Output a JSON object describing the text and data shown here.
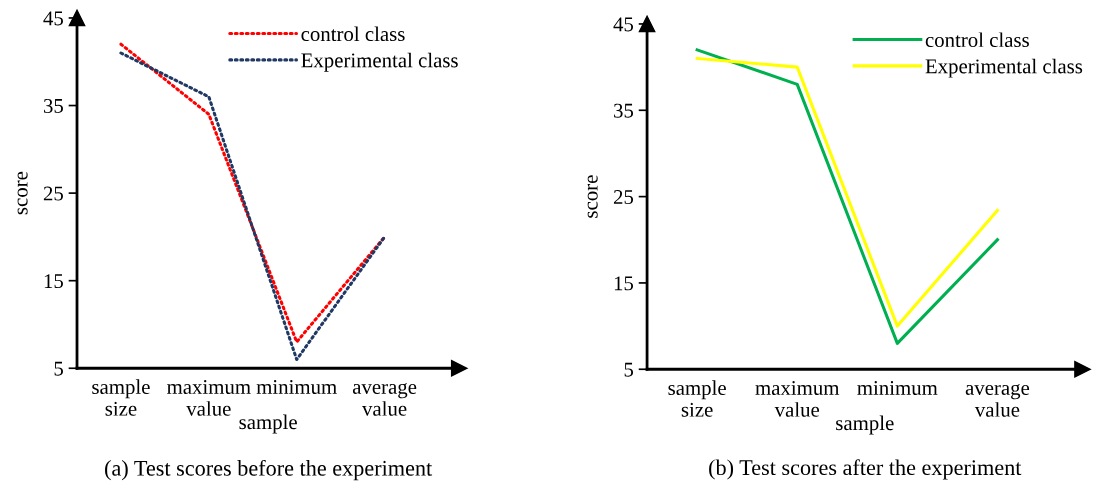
{
  "chart_data": [
    {
      "type": "line",
      "title": "(a) Test scores before the experiment",
      "xlabel": "sample",
      "ylabel": "score",
      "categories": [
        "sample\nsize",
        "maximum\nvalue",
        "minimum",
        "average\nvalue"
      ],
      "series": [
        {
          "name": "control class",
          "color": "#ff0000",
          "line_style": "dotted",
          "values": [
            42,
            34,
            8,
            20
          ]
        },
        {
          "name": "Experimental class",
          "color": "#203864",
          "line_style": "dotted",
          "values": [
            41,
            36,
            6,
            20
          ]
        }
      ],
      "ylim": [
        5,
        45
      ],
      "yticks": [
        5,
        15,
        25,
        35,
        45
      ],
      "grid": false,
      "legend": "top right"
    },
    {
      "type": "line",
      "title": "(b) Test scores after the experiment",
      "xlabel": "sample",
      "ylabel": "score",
      "categories": [
        "sample\nsize",
        "maximum\nvalue",
        "minimum",
        "average\nvalue"
      ],
      "series": [
        {
          "name": "control class",
          "color": "#00b050",
          "line_style": "solid",
          "values": [
            42,
            38,
            8,
            20
          ]
        },
        {
          "name": "Experimental class",
          "color": "#ffff00",
          "line_style": "solid",
          "values": [
            41,
            40,
            10,
            23.4
          ]
        }
      ],
      "ylim": [
        5,
        45
      ],
      "yticks": [
        5,
        15,
        25,
        35,
        45
      ],
      "grid": false,
      "legend": "top right"
    }
  ]
}
